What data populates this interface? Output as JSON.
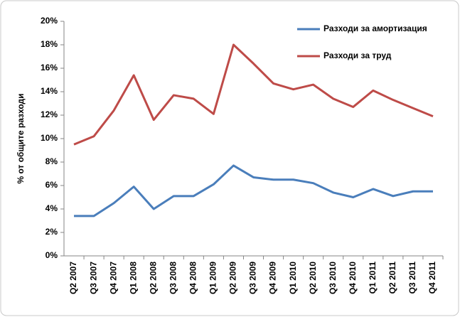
{
  "chart_data": {
    "type": "line",
    "y_label": "% от общите разходи",
    "categories": [
      "Q2 2007",
      "Q3 2007",
      "Q4 2007",
      "Q1 2008",
      "Q2 2008",
      "Q3 2008",
      "Q4 2008",
      "Q1 2009",
      "Q2 2009",
      "Q3 2009",
      "Q4 2009",
      "Q1 2010",
      "Q2 2010",
      "Q3 2010",
      "Q4 2010",
      "Q1 2011",
      "Q2 2011",
      "Q3 2011",
      "Q4 2011"
    ],
    "series": [
      {
        "name": "Разходи за амортизация",
        "color": "#4a7ebb",
        "values": [
          3.4,
          3.4,
          4.5,
          5.9,
          4.0,
          5.1,
          5.1,
          6.1,
          7.7,
          6.7,
          6.5,
          6.5,
          6.2,
          5.4,
          5.0,
          5.7,
          5.1,
          5.5,
          5.5
        ]
      },
      {
        "name": "Разходи за труд",
        "color": "#be4b48",
        "values": [
          9.5,
          10.2,
          12.4,
          15.4,
          11.6,
          13.7,
          13.4,
          12.1,
          18.0,
          16.4,
          14.7,
          14.2,
          14.6,
          13.4,
          12.7,
          14.1,
          13.3,
          12.6,
          11.9
        ]
      }
    ],
    "ylim": [
      0,
      20
    ],
    "yticks": [
      {
        "value": 0,
        "label": "0%"
      },
      {
        "value": 2,
        "label": "2%"
      },
      {
        "value": 4,
        "label": "4%"
      },
      {
        "value": 6,
        "label": "6%"
      },
      {
        "value": 8,
        "label": "8%"
      },
      {
        "value": 10,
        "label": "10%"
      },
      {
        "value": 12,
        "label": "12%"
      },
      {
        "value": 14,
        "label": "14%"
      },
      {
        "value": 16,
        "label": "16%"
      },
      {
        "value": 18,
        "label": "18%"
      },
      {
        "value": 20,
        "label": "20%"
      }
    ],
    "grid": false,
    "legend": "top-right"
  }
}
